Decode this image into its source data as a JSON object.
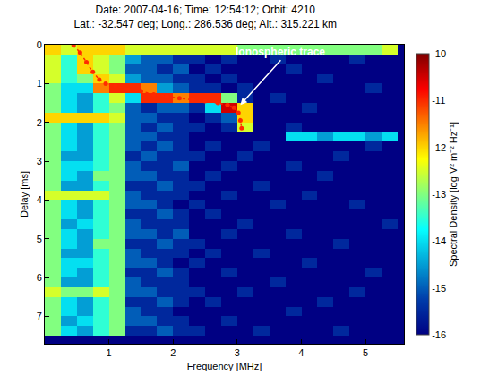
{
  "chart_data": {
    "type": "heatmap",
    "title": "Date: 2007-04-16; Time: 12:54:12; Orbit: 4210",
    "subtitle": "Lat.: -32.547 deg; Long.: 286.536 deg; Alt.: 315.221 km",
    "x_label": "Frequency [MHz]",
    "y_label": "Delay [ms]",
    "xlim": [
      0,
      5.6
    ],
    "xticks": [
      1,
      2,
      3,
      4,
      5
    ],
    "ylim": [
      7.7,
      0
    ],
    "yticks": [
      0,
      1,
      2,
      3,
      4,
      5,
      6,
      7
    ],
    "grid": false,
    "x": [
      0.125,
      0.375,
      0.625,
      0.875,
      1.125,
      1.375,
      1.625,
      1.875,
      2.125,
      2.375,
      2.625,
      2.875,
      3.125,
      3.375,
      3.625,
      3.875,
      4.125,
      4.375,
      4.625,
      4.875,
      5.125,
      5.375
    ],
    "y": [
      0.125,
      0.375,
      0.625,
      0.875,
      1.125,
      1.375,
      1.625,
      1.875,
      2.125,
      2.375,
      2.625,
      2.875,
      3.125,
      3.375,
      3.625,
      3.875,
      4.125,
      4.375,
      4.625,
      4.875,
      5.125,
      5.375,
      5.625,
      5.875,
      6.125,
      6.375,
      6.625,
      6.875,
      7.125,
      7.375
    ],
    "cells": [
      [
        -12,
        -12.5,
        -12,
        -12,
        -12,
        -12.5,
        -12.5,
        -12.5,
        -12.5,
        -12.5,
        -12.5,
        -12.5,
        -13,
        -13,
        -13,
        -13,
        -13,
        -13,
        -13,
        -13,
        -13,
        -12.5
      ],
      [
        -12.5,
        -13.5,
        -12,
        -12.5,
        -13,
        -14.5,
        -15,
        -15,
        -15.5,
        -15.5,
        -16,
        -15.5,
        -16,
        -16,
        -15.5,
        -16,
        -16,
        -16,
        -16,
        -15.5,
        -16,
        -16
      ],
      [
        -12.5,
        -13.5,
        -12,
        -12.5,
        -13,
        -15,
        -15,
        -15.5,
        -15,
        -16,
        -15.5,
        -16,
        -16,
        -16,
        -16,
        -15.5,
        -16,
        -16,
        -16,
        -16,
        -16,
        -16
      ],
      [
        -12.5,
        -13.5,
        -13,
        -12,
        -12.5,
        -14.5,
        -15,
        -15,
        -15.5,
        -15.5,
        -16,
        -15.5,
        -16,
        -16,
        -16,
        -16,
        -16,
        -15.5,
        -16,
        -16,
        -16,
        -16
      ],
      [
        -13,
        -14,
        -14,
        -11.5,
        -11,
        -11,
        -11.5,
        -14.5,
        -15,
        -15.5,
        -15.5,
        -16,
        -15.5,
        -16,
        -16,
        -16,
        -16,
        -16,
        -16,
        -16,
        -15.5,
        -16
      ],
      [
        -13,
        -14,
        -14.5,
        -13.5,
        -12.5,
        -14,
        -11,
        -11,
        -11.5,
        -11,
        -11,
        -13,
        -15.5,
        -16,
        -15.5,
        -16,
        -16,
        -16,
        -16,
        -16,
        -16,
        -16
      ],
      [
        -13,
        -14,
        -14.5,
        -13.5,
        -13,
        -15,
        -15.5,
        -15,
        -15,
        -15.5,
        -14,
        -10.5,
        -12,
        -16,
        -16,
        -16,
        -15.5,
        -16,
        -16,
        -16,
        -16,
        -16
      ],
      [
        -12,
        -12,
        -12,
        -12,
        -12.5,
        -15,
        -15,
        -15.5,
        -15.5,
        -16,
        -15.5,
        -15,
        -12,
        -16,
        -16,
        -16,
        -16,
        -16,
        -16,
        -16,
        -16,
        -16
      ],
      [
        -13,
        -14,
        -14.5,
        -13.5,
        -13,
        -15,
        -15.5,
        -15,
        -15.5,
        -15.5,
        -16,
        -15.5,
        -12.5,
        -16,
        -16,
        -15.5,
        -16,
        -16,
        -16,
        -16,
        -16,
        -16
      ],
      [
        -13,
        -14,
        -14.5,
        -13.5,
        -13,
        -15,
        -15,
        -15.5,
        -15.5,
        -16,
        -16,
        -16,
        -16,
        -16,
        -16,
        -14,
        -14,
        -14.5,
        -14,
        -14,
        -14.5,
        -14
      ],
      [
        -13,
        -14,
        -14.5,
        -13.5,
        -13,
        -15,
        -15.5,
        -15,
        -15.5,
        -16,
        -15.5,
        -16,
        -16,
        -15.5,
        -16,
        -16,
        -16,
        -16,
        -16,
        -16,
        -15.5,
        -16
      ],
      [
        -13,
        -14.5,
        -14.5,
        -13.5,
        -13,
        -15.5,
        -15,
        -15.5,
        -15.5,
        -15.5,
        -16,
        -16,
        -15.5,
        -16,
        -16,
        -16,
        -16,
        -16,
        -15.5,
        -16,
        -16,
        -16
      ],
      [
        -13,
        -14,
        -14,
        -13.5,
        -13,
        -15,
        -15.5,
        -15.5,
        -15,
        -16,
        -16,
        -15.5,
        -16,
        -16,
        -16,
        -15.5,
        -16,
        -16,
        -16,
        -16,
        -16,
        -16
      ],
      [
        -13,
        -14,
        -14.5,
        -13,
        -13,
        -15,
        -15,
        -15.5,
        -15.5,
        -16,
        -15.5,
        -16,
        -16,
        -16,
        -16,
        -16,
        -16,
        -15.5,
        -16,
        -16,
        -16,
        -16
      ],
      [
        -13,
        -14.5,
        -14.5,
        -13.5,
        -13,
        -15.5,
        -15.5,
        -15,
        -15.5,
        -15.5,
        -16,
        -16,
        -16,
        -15.5,
        -16,
        -16,
        -16,
        -16,
        -16,
        -16,
        -16,
        -16
      ],
      [
        -12.5,
        -12.5,
        -12.5,
        -12.5,
        -13,
        -15,
        -15.5,
        -15.5,
        -15.5,
        -16,
        -16,
        -15.5,
        -16,
        -16,
        -16,
        -16,
        -15.5,
        -16,
        -16,
        -16,
        -16,
        -16
      ],
      [
        -13,
        -14,
        -14.5,
        -13.5,
        -13,
        -15,
        -15,
        -15.5,
        -16,
        -15.5,
        -16,
        -16,
        -16,
        -16,
        -15.5,
        -16,
        -16,
        -16,
        -16,
        -15.5,
        -16,
        -16
      ],
      [
        -13,
        -14,
        -14.5,
        -13.5,
        -13,
        -15.5,
        -15.5,
        -15,
        -15.5,
        -16,
        -15.5,
        -16,
        -16,
        -16,
        -16,
        -16,
        -16,
        -16,
        -16,
        -16,
        -16,
        -16
      ],
      [
        -13,
        -14.5,
        -14,
        -13.5,
        -13,
        -15,
        -15.5,
        -15.5,
        -15.5,
        -16,
        -16,
        -16,
        -15.5,
        -16,
        -16,
        -16,
        -16,
        -16,
        -16,
        -16,
        -16,
        -15.5
      ],
      [
        -13,
        -14,
        -14.5,
        -13.5,
        -13,
        -15,
        -15,
        -15.5,
        -15,
        -16,
        -16,
        -15.5,
        -16,
        -16,
        -16,
        -15.5,
        -16,
        -16,
        -16,
        -16,
        -16,
        -16
      ],
      [
        -13,
        -14,
        -14.5,
        -13,
        -13,
        -15.5,
        -15.5,
        -15,
        -15.5,
        -15.5,
        -16,
        -16,
        -16,
        -16,
        -16,
        -16,
        -16,
        -16,
        -15.5,
        -16,
        -16,
        -16
      ],
      [
        -13,
        -14.5,
        -14.5,
        -13.5,
        -13,
        -15,
        -15.5,
        -15.5,
        -15.5,
        -16,
        -15.5,
        -16,
        -16,
        -15.5,
        -16,
        -16,
        -16,
        -16,
        -16,
        -16,
        -16,
        -16
      ],
      [
        -13,
        -14,
        -14,
        -13.5,
        -13,
        -15,
        -15,
        -15.5,
        -16,
        -15.5,
        -16,
        -16,
        -16,
        -16,
        -16,
        -16,
        -15.5,
        -16,
        -16,
        -16,
        -16,
        -16
      ],
      [
        -13,
        -14,
        -14.5,
        -13.5,
        -13,
        -15.5,
        -15.5,
        -15,
        -15.5,
        -16,
        -16,
        -15.5,
        -16,
        -16,
        -16,
        -16,
        -16,
        -16,
        -16,
        -16,
        -15.5,
        -16
      ],
      [
        -13,
        -14.5,
        -14.5,
        -13.5,
        -13,
        -15,
        -15.5,
        -15.5,
        -15.5,
        -16,
        -16,
        -16,
        -16,
        -16,
        -15.5,
        -16,
        -16,
        -16,
        -16,
        -16,
        -16,
        -16
      ],
      [
        -12.5,
        -13,
        -13,
        -12.5,
        -13,
        -15,
        -15,
        -15.5,
        -15.5,
        -15.5,
        -16,
        -16,
        -15.5,
        -16,
        -16,
        -16,
        -16,
        -16,
        -16,
        -15.5,
        -16,
        -16
      ],
      [
        -13,
        -14,
        -14.5,
        -13.5,
        -13,
        -15.5,
        -15.5,
        -15,
        -15.5,
        -16,
        -15.5,
        -16,
        -16,
        -16,
        -16,
        -16,
        -16,
        -15.5,
        -16,
        -16,
        -16,
        -16
      ],
      [
        -13,
        -14,
        -14.5,
        -13.5,
        -13,
        -15,
        -15.5,
        -15.5,
        -16,
        -16,
        -16,
        -16,
        -16,
        -16,
        -16,
        -15.5,
        -16,
        -16,
        -16,
        -16,
        -16,
        -16
      ],
      [
        -13,
        -14.5,
        -14,
        -13.5,
        -13,
        -15,
        -15,
        -15.5,
        -15.5,
        -16,
        -16,
        -15.5,
        -16,
        -16,
        -16,
        -16,
        -16,
        -16,
        -16,
        -16,
        -16,
        -16
      ],
      [
        -13,
        -14,
        -14.5,
        -13.5,
        -13,
        -15.5,
        -15.5,
        -15,
        -15.5,
        -15.5,
        -16,
        -16,
        -16,
        -15.5,
        -16,
        -16,
        -16,
        -16,
        -15.5,
        -16,
        -16,
        -16
      ]
    ],
    "zlim": [
      -16,
      -10
    ],
    "zticks": [
      -16,
      -15,
      -14,
      -13,
      -12,
      -11,
      -10
    ],
    "colorbar_title": "Spectral Density [log V² m⁻² Hz⁻¹]",
    "series": [
      {
        "type": "scatter",
        "color": "#ff2a00",
        "marker": "circle",
        "line_style": "dot",
        "x": [
          0.45,
          0.55,
          0.65,
          0.75,
          0.85,
          0.95,
          1.1,
          1.3,
          1.5,
          1.7,
          1.9,
          2.1,
          2.3,
          2.5,
          2.7,
          2.85,
          2.95,
          3.02,
          3.05,
          3.07
        ],
        "values": [
          0.02,
          0.2,
          0.45,
          0.7,
          0.9,
          1.0,
          1.05,
          1.15,
          1.2,
          1.28,
          1.33,
          1.38,
          1.42,
          1.45,
          1.5,
          1.55,
          1.62,
          1.75,
          1.95,
          2.15
        ]
      }
    ],
    "annotations": [
      {
        "text": "Ionospheric trace",
        "x": 3.05,
        "y": 1.55
      }
    ]
  }
}
